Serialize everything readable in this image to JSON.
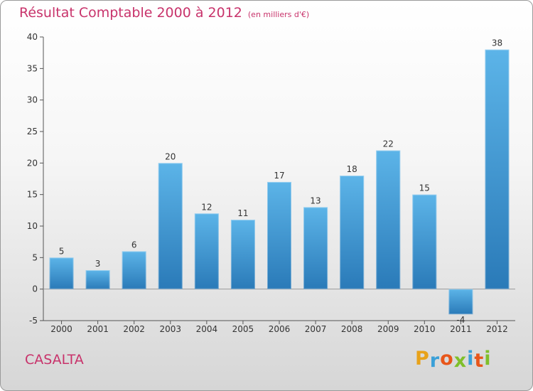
{
  "header": {
    "title": "Résultat Comptable 2000 à 2012",
    "subtitle": "(en milliers d'€)"
  },
  "footer": {
    "commune": "CASALTA",
    "brand": "Proxiti",
    "brand_colors": [
      "#e8a21a",
      "#3aa0d8",
      "#e8561a",
      "#7fbf2a",
      "#3aa0d8",
      "#e8561a",
      "#7fbf2a"
    ]
  },
  "colors": {
    "bar_top": "#5cb4e8",
    "bar_bottom": "#2a7ab8",
    "title": "#c8336b",
    "axis": "#555555",
    "grid": "#d0d0d0"
  },
  "chart_data": {
    "type": "bar",
    "title": "Résultat Comptable 2000 à 2012",
    "subtitle": "(en milliers d'€)",
    "xlabel": "",
    "ylabel": "",
    "categories": [
      "2000",
      "2001",
      "2002",
      "2003",
      "2004",
      "2005",
      "2006",
      "2007",
      "2008",
      "2009",
      "2010",
      "2011",
      "2012"
    ],
    "values": [
      5,
      3,
      6,
      20,
      12,
      11,
      17,
      13,
      18,
      22,
      15,
      -4,
      38
    ],
    "labels": [
      "5",
      "3",
      "6",
      "20",
      "12",
      "11",
      "17",
      "13",
      "18",
      "22",
      "15",
      "-4",
      "38"
    ],
    "ylim": [
      -5,
      40
    ],
    "yticks": [
      -5,
      0,
      5,
      10,
      15,
      20,
      25,
      30,
      35,
      40
    ],
    "grid": false
  }
}
